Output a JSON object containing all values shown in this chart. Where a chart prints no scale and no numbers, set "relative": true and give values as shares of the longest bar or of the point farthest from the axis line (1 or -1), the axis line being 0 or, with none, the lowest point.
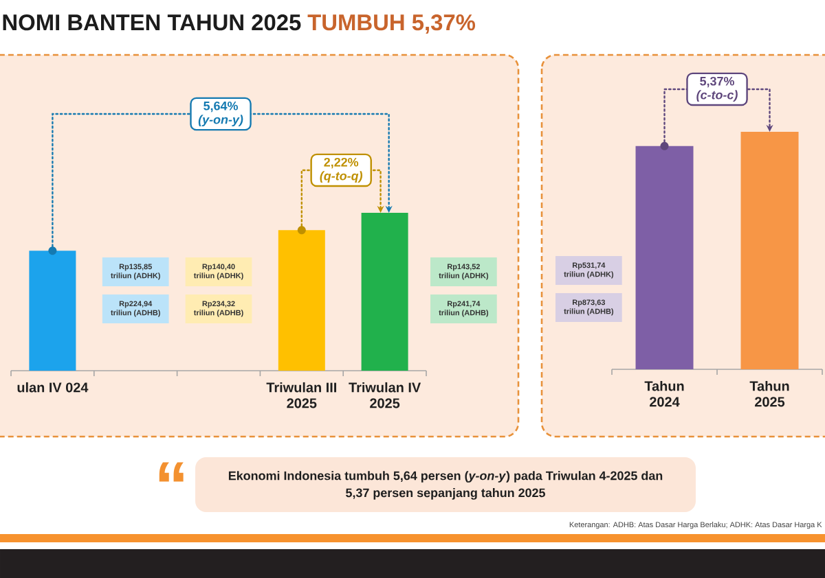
{
  "chart_data": [
    {
      "type": "bar",
      "title": "NOMI BANTEN TAHUN 2025",
      "subtitle": "TUMBUH 5,37%",
      "relative": true,
      "categories": [
        "ulan IV 024",
        null,
        null,
        "Triwulan III 2025",
        "Triwulan IV 2025"
      ],
      "values": [
        0.76,
        null,
        null,
        0.89,
        1
      ],
      "colors": [
        "#1ca3ec",
        null,
        null,
        "#ffc000",
        "#21b14c"
      ],
      "annotations": [
        "5,64% *(y-on-y)*",
        "2,22% *(q-to-q)*",
        "Rp135,85 triliun (ADHK)",
        "Rp224,94 triliun (ADHB)",
        "Rp140,40 triliun (ADHK)",
        "Rp234,32 triliun (ADHB)",
        "Rp143,52 triliun (ADHK)",
        "Rp241,74 triliun (ADHB)"
      ]
    },
    {
      "type": "bar",
      "relative": true,
      "categories": [
        "Tahun 2024",
        "Tahun 2025"
      ],
      "values": [
        0.94,
        1
      ],
      "colors": [
        "#7e5fa6",
        "#f79646"
      ],
      "annotations": [
        "5,37% *(c-to-c)*",
        "Rp531,74 triliun (ADHK)",
        "Rp873,63 triliun (ADHB)"
      ]
    },
    {
      "type": "other",
      "annotations": [
        "“",
        "Ekonomi Indonesia tumbuh 5,64 persen (*y-on-y*) pada Triwulan 4-2025 dan 5,37 persen sepanjang tahun 2025",
        "Keterangan: ADHB: Atas Dasar Harga Berlaku; ADHK: Atas Dasar Harga K"
      ]
    }
  ]
}
